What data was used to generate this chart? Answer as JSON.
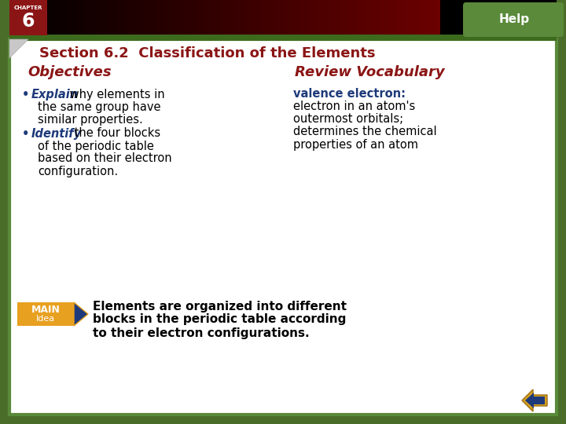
{
  "bg_outer": "#4a6e2a",
  "bg_inner": "#ffffff",
  "header_left_color": "#1a0000",
  "header_mid_color": "#6b0000",
  "help_tab_color": "#5a8a3a",
  "help_text": "Help",
  "chapter_box_color": "#8b1515",
  "chapter_label": "CHAPTER",
  "chapter_number": "6",
  "section_title": "Section 6.2  Classification of the Elements",
  "section_title_color": "#8b1515",
  "objectives_label": "Objectives",
  "objectives_color": "#8b1515",
  "review_label": "Review Vocabulary",
  "review_color": "#8b1515",
  "bullet_color": "#1e3a7a",
  "bullet_text_color": "#000000",
  "explain_word": "Explain",
  "explain_rest": " why elements in the same group have similar properties.",
  "identify_word": "Identify",
  "identify_rest": " the four blocks of the periodic table based on their electron configuration.",
  "vocab_term": "valence electron:",
  "vocab_term_color": "#1e3a7a",
  "vocab_def_lines": [
    "electron in an atom's",
    "outermost orbitals;",
    "determines the chemical",
    "properties of an atom"
  ],
  "vocab_def_color": "#000000",
  "main_badge_color": "#e8a020",
  "main_arrow_color": "#1e3a7a",
  "main_label": "MAIN",
  "main_label2": "Idea",
  "main_text_lines": [
    "Elements are organized into different",
    "blocks in the periodic table according",
    "to their electron configurations."
  ],
  "nav_gold": "#d4a020",
  "nav_blue": "#1e3a7a",
  "fold_color": "#c8c8c8"
}
